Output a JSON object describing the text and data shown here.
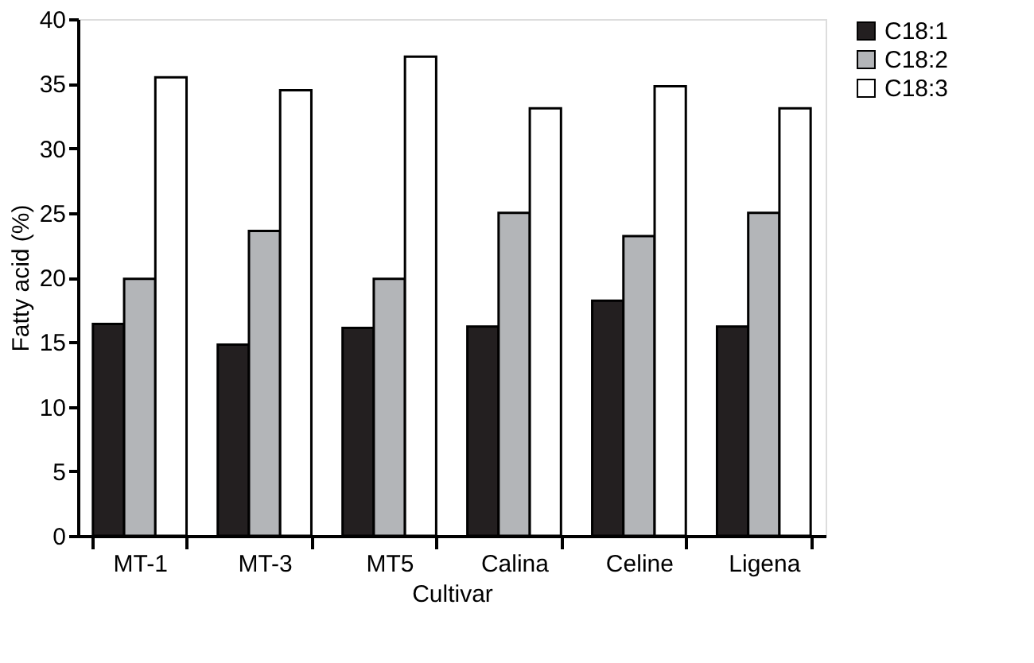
{
  "chart_data": {
    "type": "bar",
    "xlabel": "Cultivar",
    "ylabel": "Fatty acid (%)",
    "categories": [
      "MT-1",
      "MT-3",
      "MT5",
      "Calina",
      "Celine",
      "Ligena"
    ],
    "series": [
      {
        "name": "C18:1",
        "color": "#231f20",
        "values": [
          16.4,
          14.8,
          16.1,
          16.2,
          18.2,
          16.2
        ]
      },
      {
        "name": "C18:2",
        "color": "#b3b5b8",
        "values": [
          19.9,
          23.6,
          19.9,
          25.0,
          23.2,
          25.0
        ]
      },
      {
        "name": "C18:3",
        "color": "#ffffff",
        "values": [
          35.5,
          34.5,
          37.1,
          33.1,
          34.8,
          33.1
        ]
      }
    ],
    "ylim": [
      0,
      40
    ],
    "yticks": [
      0,
      5,
      10,
      15,
      20,
      25,
      30,
      35,
      40
    ],
    "grid": false,
    "legend": "right"
  }
}
